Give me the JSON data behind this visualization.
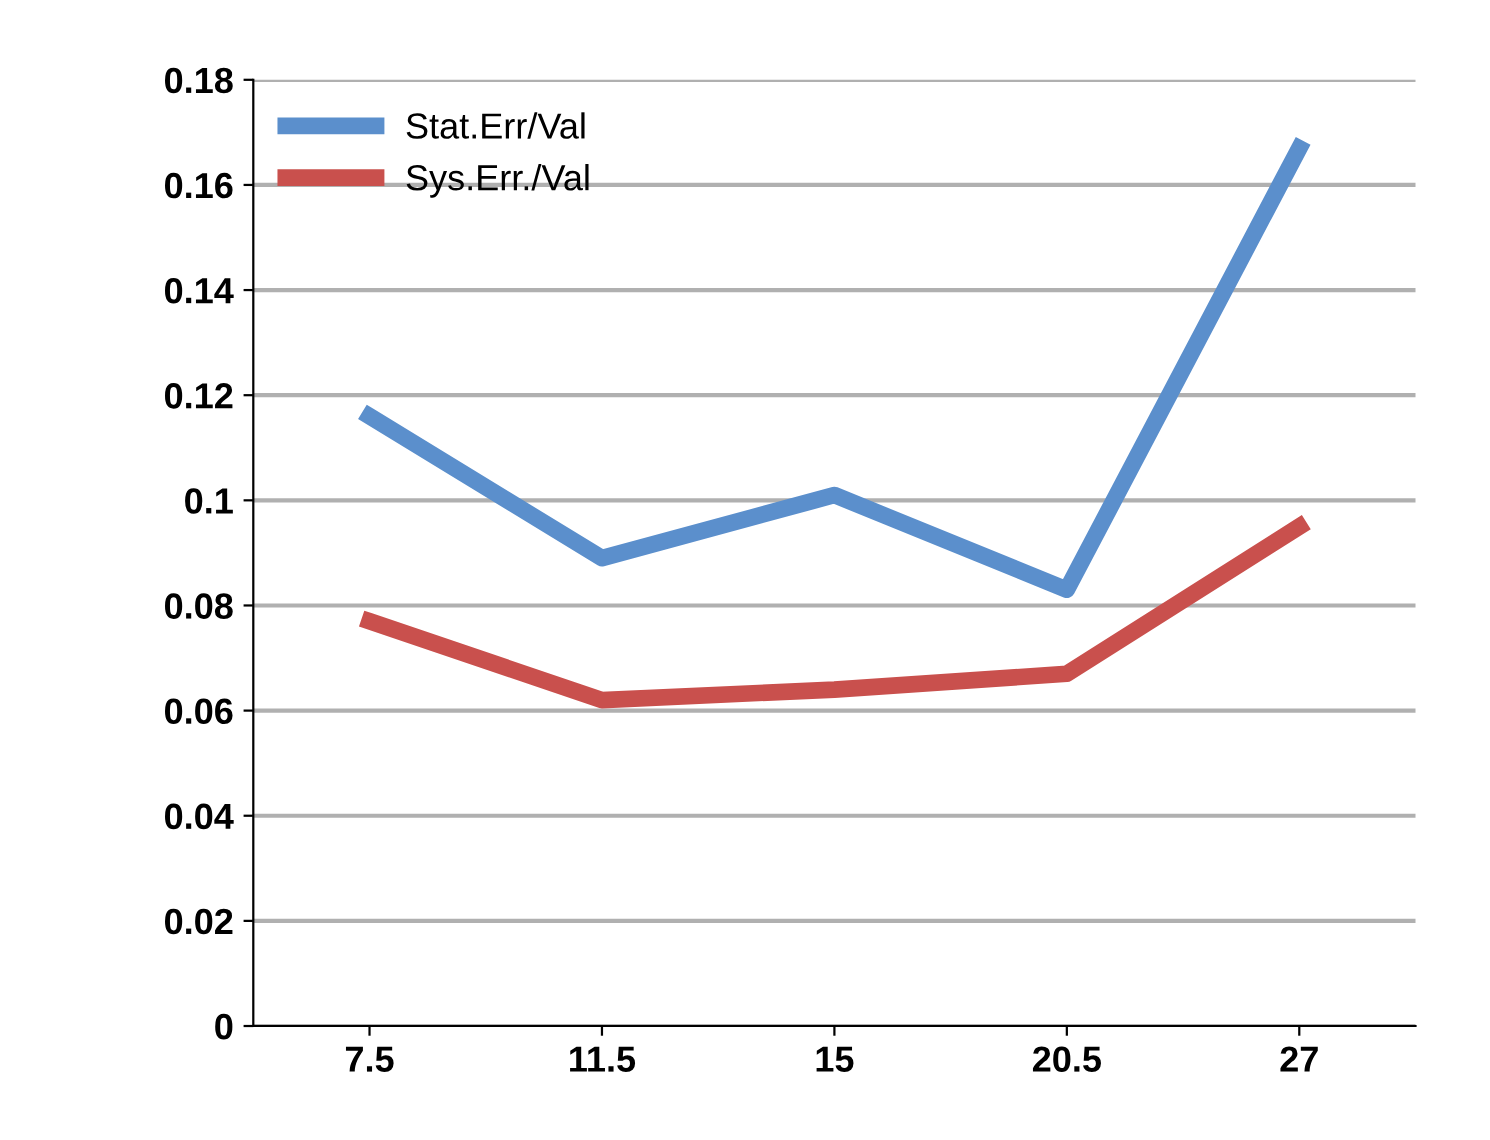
{
  "chart_data": {
    "type": "line",
    "categories": [
      "7.5",
      "11.5",
      "15",
      "20.5",
      "27"
    ],
    "series": [
      {
        "name": "Stat.Err/Val",
        "color": "#5b8fcc",
        "values": [
          0.116,
          0.089,
          0.101,
          0.083,
          0.167
        ]
      },
      {
        "name": "Sys.Err./Val",
        "color": "#c9504d",
        "values": [
          0.077,
          0.062,
          0.064,
          0.067,
          0.095
        ]
      }
    ],
    "ylim": [
      0,
      0.18
    ],
    "yticks": [
      0,
      0.02,
      0.04,
      0.06,
      0.08,
      0.1,
      0.12,
      0.14,
      0.16,
      0.18
    ],
    "grid": "y",
    "legend": "top left",
    "marker": "none",
    "line_style": "solid"
  }
}
